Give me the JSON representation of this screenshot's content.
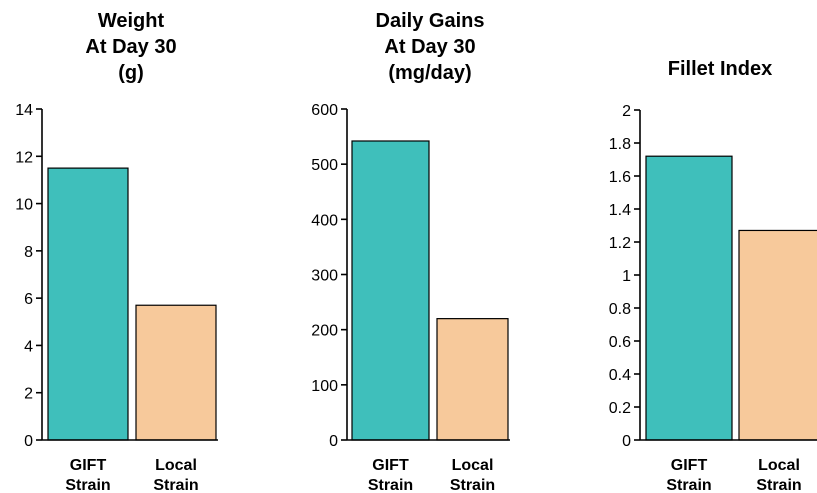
{
  "colors": {
    "gift": "#3fbfbb",
    "local": "#f7c99b"
  },
  "chart_data": [
    {
      "type": "bar",
      "title": [
        "Weight",
        "At Day 30",
        "(g)"
      ],
      "categories": [
        [
          "GIFT",
          "Strain"
        ],
        [
          "Local",
          "Strain"
        ]
      ],
      "values": [
        11.5,
        5.7
      ],
      "ylim": [
        0,
        14
      ],
      "yticks": [
        "0",
        "2",
        "4",
        "6",
        "8",
        "10",
        "12",
        "14"
      ],
      "xlabel": "",
      "ylabel": ""
    },
    {
      "type": "bar",
      "title": [
        "Daily Gains",
        "At Day 30",
        "(mg/day)"
      ],
      "categories": [
        [
          "GIFT",
          "Strain"
        ],
        [
          "Local",
          "Strain"
        ]
      ],
      "values": [
        542,
        220
      ],
      "ylim": [
        0,
        600
      ],
      "yticks": [
        "0",
        "100",
        "200",
        "300",
        "400",
        "500",
        "600"
      ],
      "xlabel": "",
      "ylabel": ""
    },
    {
      "type": "bar",
      "title": [
        "Fillet Index"
      ],
      "categories": [
        [
          "GIFT",
          "Strain"
        ],
        [
          "Local",
          "Strain"
        ]
      ],
      "values": [
        1.72,
        1.27
      ],
      "ylim": [
        0,
        2
      ],
      "yticks": [
        "0",
        "0.2",
        "0.4",
        "0.6",
        "0.8",
        "1",
        "1.2",
        "1.4",
        "1.6",
        "1.8",
        "2"
      ],
      "xlabel": "",
      "ylabel": ""
    }
  ]
}
